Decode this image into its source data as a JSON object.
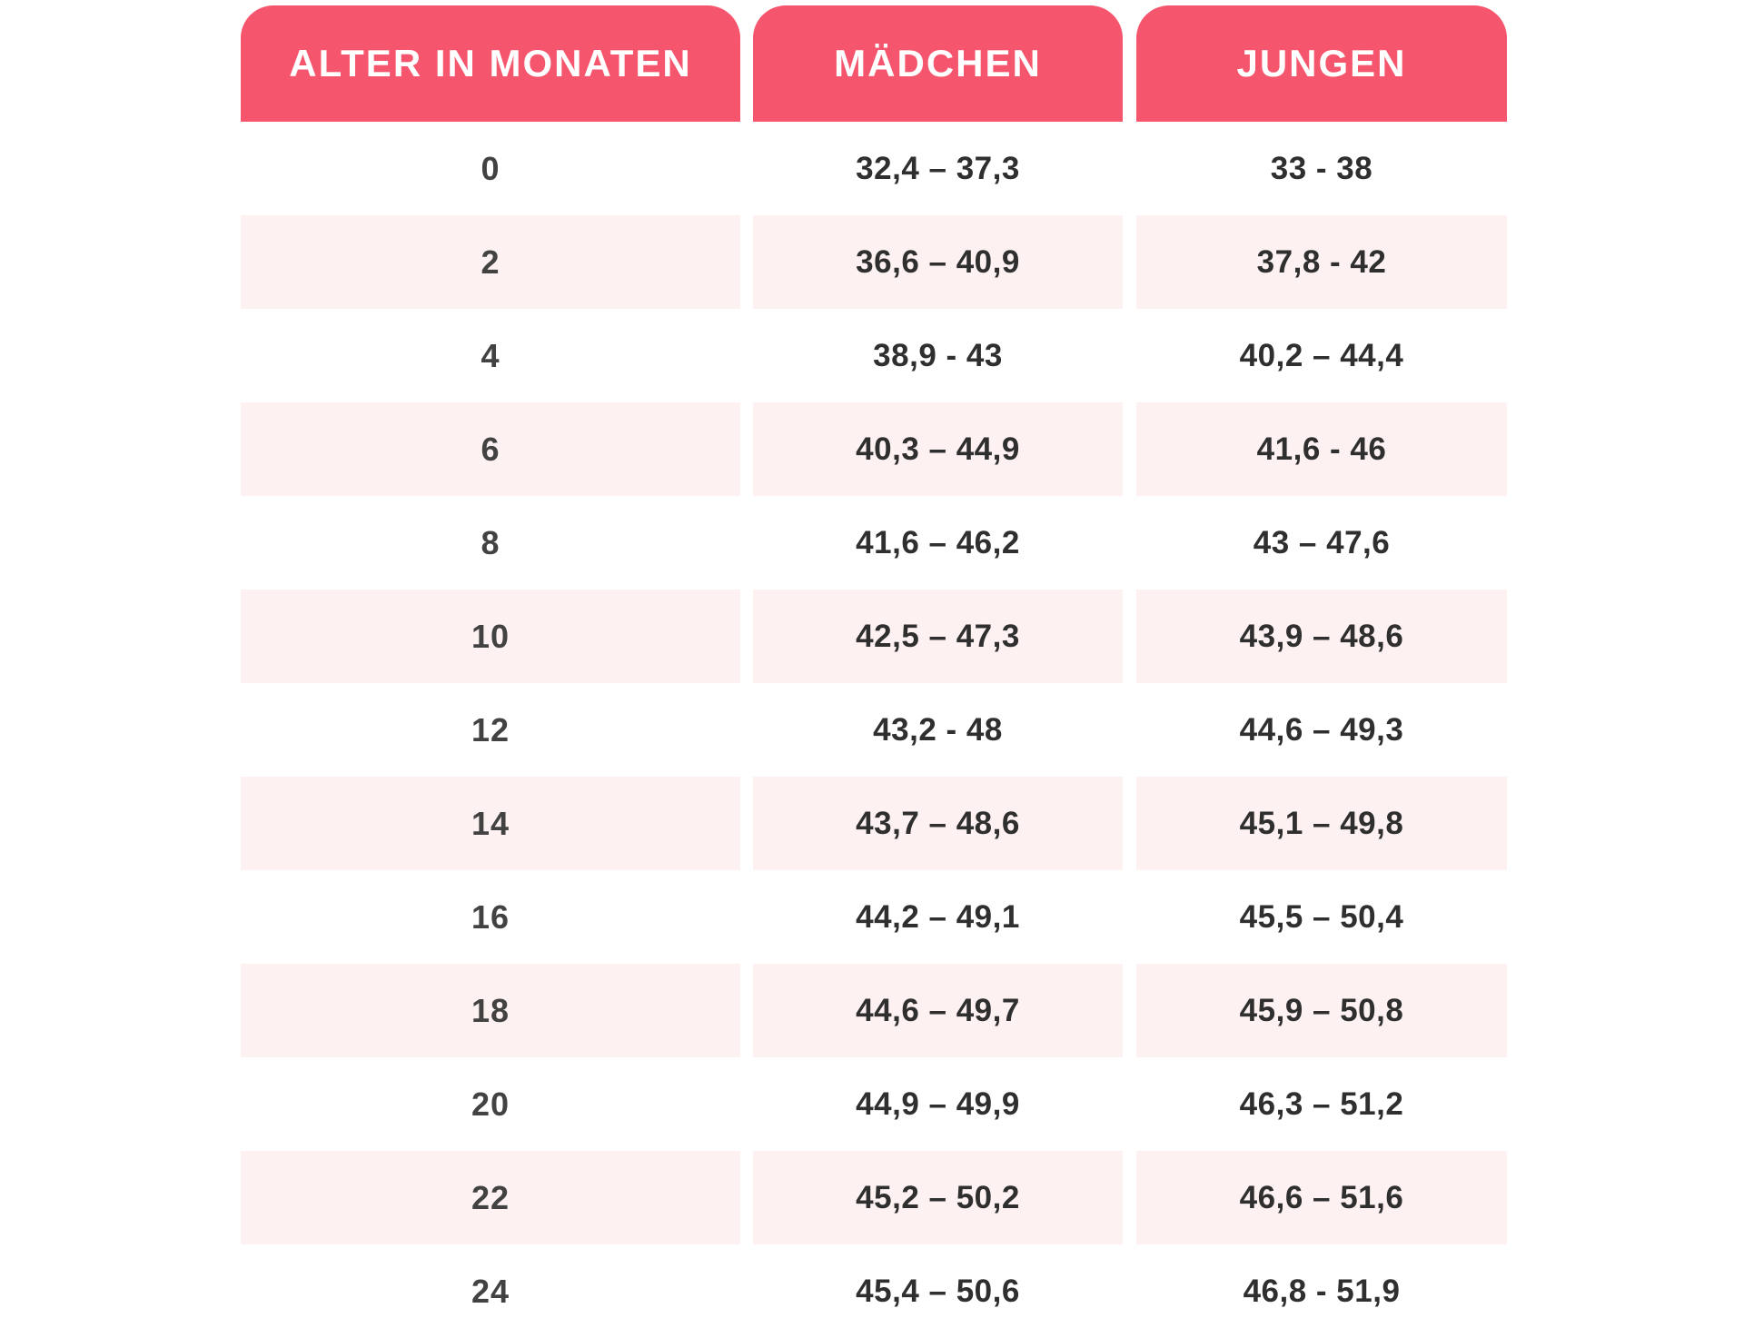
{
  "chart_data": {
    "type": "table",
    "title": "",
    "columns": [
      "ALTER IN MONATEN",
      "MÄDCHEN",
      "JUNGEN"
    ],
    "rows": [
      {
        "age": "0",
        "maedchen": "32,4 – 37,3",
        "jungen": "33 - 38"
      },
      {
        "age": "2",
        "maedchen": "36,6 – 40,9",
        "jungen": "37,8 - 42"
      },
      {
        "age": "4",
        "maedchen": "38,9 - 43",
        "jungen": "40,2 – 44,4"
      },
      {
        "age": "6",
        "maedchen": "40,3 – 44,9",
        "jungen": "41,6 - 46"
      },
      {
        "age": "8",
        "maedchen": "41,6 – 46,2",
        "jungen": "43 – 47,6"
      },
      {
        "age": "10",
        "maedchen": "42,5 – 47,3",
        "jungen": "43,9 – 48,6"
      },
      {
        "age": "12",
        "maedchen": "43,2 - 48",
        "jungen": "44,6 – 49,3"
      },
      {
        "age": "14",
        "maedchen": "43,7 – 48,6",
        "jungen": "45,1 – 49,8"
      },
      {
        "age": "16",
        "maedchen": "44,2 – 49,1",
        "jungen": "45,5 – 50,4"
      },
      {
        "age": "18",
        "maedchen": "44,6 – 49,7",
        "jungen": "45,9 – 50,8"
      },
      {
        "age": "20",
        "maedchen": "44,9 – 49,9",
        "jungen": "46,3 – 51,2"
      },
      {
        "age": "22",
        "maedchen": "45,2 – 50,2",
        "jungen": "46,6 – 51,6"
      },
      {
        "age": "24",
        "maedchen": "45,4 – 50,6",
        "jungen": "46,8 - 51,9"
      }
    ],
    "layout": {
      "striped_rows": "alternating, first row white",
      "legend_position": "none",
      "grid": "off"
    }
  },
  "colors": {
    "header_bg": "#F6566D",
    "header_text": "#FFFFFF",
    "row_stripe": "#FDF1F2",
    "value_text": "#2F2F2F"
  }
}
